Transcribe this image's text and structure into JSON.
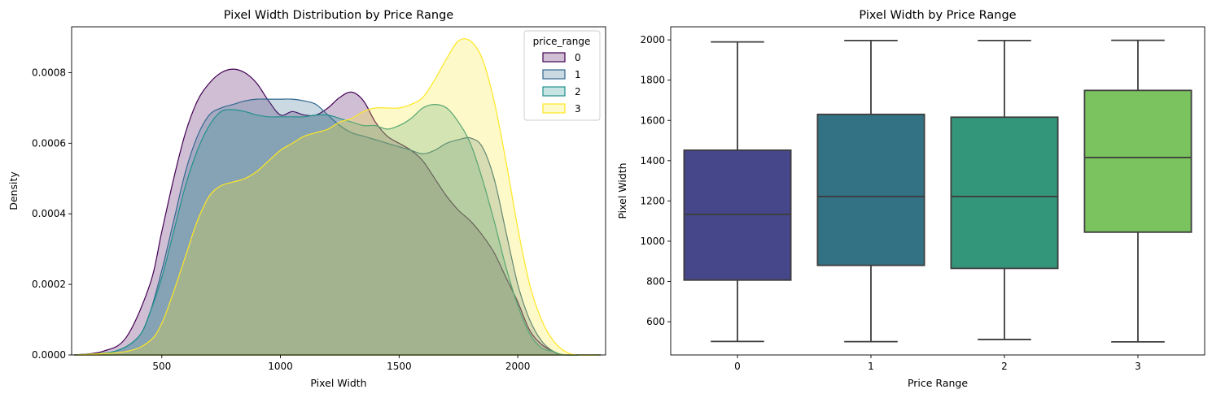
{
  "chart_data": [
    {
      "type": "area",
      "title": "Pixel Width Distribution by Price Range",
      "xlabel": "Pixel Width",
      "ylabel": "Density",
      "xlim": [
        120,
        2370
      ],
      "ylim": [
        0,
        0.00093
      ],
      "xticks": [
        500,
        1000,
        1500,
        2000
      ],
      "xtick_labels": [
        "500",
        "1000",
        "1500",
        "2000"
      ],
      "yticks": [
        0,
        0.0002,
        0.0004,
        0.0006,
        0.0008
      ],
      "ytick_labels": [
        "0.0000",
        "0.0002",
        "0.0004",
        "0.0006",
        "0.0008"
      ],
      "legend": {
        "title": "price_range",
        "position": "top-right"
      },
      "series": [
        {
          "name": "0",
          "color": "#440154",
          "x": [
            130,
            250,
            350,
            450,
            500,
            550,
            600,
            650,
            700,
            750,
            800,
            850,
            900,
            950,
            1000,
            1050,
            1100,
            1150,
            1200,
            1250,
            1300,
            1350,
            1400,
            1450,
            1500,
            1550,
            1600,
            1650,
            1700,
            1750,
            1800,
            1850,
            1900,
            1950,
            2000,
            2050,
            2100,
            2150,
            2200,
            2350
          ],
          "y": [
            0,
            1e-05,
            5e-05,
            0.0002,
            0.00035,
            0.0005,
            0.00063,
            0.00072,
            0.00077,
            0.0008,
            0.00081,
            0.0008,
            0.00077,
            0.00072,
            0.00068,
            0.00069,
            0.00068,
            0.00068,
            0.0007,
            0.00073,
            0.000745,
            0.00072,
            0.00066,
            0.00062,
            0.0006,
            0.00058,
            0.00055,
            0.0005,
            0.00045,
            0.00041,
            0.00038,
            0.00034,
            0.00029,
            0.00022,
            0.00015,
            7e-05,
            3e-05,
            1e-05,
            0,
            0
          ]
        },
        {
          "name": "1",
          "color": "#31688e",
          "x": [
            130,
            300,
            400,
            450,
            500,
            550,
            600,
            650,
            700,
            750,
            800,
            850,
            900,
            950,
            1000,
            1050,
            1100,
            1150,
            1200,
            1250,
            1300,
            1350,
            1400,
            1450,
            1500,
            1550,
            1600,
            1650,
            1700,
            1750,
            1800,
            1850,
            1900,
            1950,
            2000,
            2050,
            2100,
            2150,
            2200,
            2350
          ],
          "y": [
            0,
            1e-05,
            5e-05,
            0.00012,
            0.00024,
            0.00038,
            0.00052,
            0.00062,
            0.00068,
            0.0007,
            0.00071,
            0.00072,
            0.000725,
            0.000725,
            0.000725,
            0.000725,
            0.00072,
            0.00071,
            0.00068,
            0.00065,
            0.00063,
            0.00062,
            0.00061,
            0.0006,
            0.00059,
            0.00058,
            0.00057,
            0.00058,
            0.0006,
            0.00061,
            0.000615,
            0.00059,
            0.0005,
            0.00035,
            0.0002,
            0.0001,
            4e-05,
            1e-05,
            0,
            0
          ]
        },
        {
          "name": "2",
          "color": "#21918c",
          "x": [
            130,
            300,
            400,
            450,
            500,
            550,
            600,
            650,
            700,
            750,
            800,
            850,
            900,
            950,
            1000,
            1050,
            1100,
            1150,
            1200,
            1250,
            1300,
            1350,
            1400,
            1450,
            1500,
            1550,
            1600,
            1650,
            1700,
            1750,
            1800,
            1850,
            1900,
            1950,
            2000,
            2050,
            2100,
            2150,
            2200,
            2350
          ],
          "y": [
            0,
            1e-05,
            5e-05,
            0.00012,
            0.00022,
            0.00035,
            0.00048,
            0.00058,
            0.00065,
            0.00069,
            0.000695,
            0.00069,
            0.00068,
            0.000675,
            0.000675,
            0.000675,
            0.000675,
            0.00068,
            0.00068,
            0.00067,
            0.00066,
            0.00065,
            0.00065,
            0.00064,
            0.00065,
            0.00067,
            0.0007,
            0.00071,
            0.0007,
            0.00066,
            0.0006,
            0.0005,
            0.00038,
            0.00025,
            0.00014,
            6e-05,
            2e-05,
            1e-05,
            0,
            0
          ]
        },
        {
          "name": "3",
          "color": "#fde725",
          "x": [
            130,
            350,
            450,
            500,
            550,
            600,
            650,
            700,
            750,
            800,
            850,
            900,
            950,
            1000,
            1050,
            1100,
            1150,
            1200,
            1250,
            1300,
            1350,
            1400,
            1450,
            1500,
            1550,
            1600,
            1650,
            1700,
            1750,
            1800,
            1850,
            1900,
            1950,
            2000,
            2050,
            2100,
            2150,
            2200,
            2250,
            2350
          ],
          "y": [
            0,
            1e-05,
            4e-05,
            9e-05,
            0.00018,
            0.00028,
            0.00038,
            0.00045,
            0.00048,
            0.00049,
            0.0005,
            0.00052,
            0.00055,
            0.00058,
            0.0006,
            0.00062,
            0.00063,
            0.00064,
            0.00066,
            0.00067,
            0.00069,
            0.0007,
            0.0007,
            0.0007,
            0.00071,
            0.00073,
            0.00078,
            0.00084,
            0.00089,
            0.00089,
            0.00084,
            0.00072,
            0.00055,
            0.00036,
            0.0002,
            0.0001,
            4e-05,
            1e-05,
            0,
            0
          ]
        }
      ]
    },
    {
      "type": "box",
      "title": "Pixel Width by Price Range",
      "xlabel": "Price Range",
      "ylabel": "Pixel Width",
      "ylim": [
        435,
        2065
      ],
      "yticks": [
        600,
        800,
        1000,
        1200,
        1400,
        1600,
        1800,
        2000
      ],
      "ytick_labels": [
        "600",
        "800",
        "1000",
        "1200",
        "1400",
        "1600",
        "1800",
        "2000"
      ],
      "categories": [
        "0",
        "1",
        "2",
        "3"
      ],
      "boxes": [
        {
          "category": "0",
          "color": "#46468a",
          "whisker_low": 502,
          "q1": 807,
          "median": 1133,
          "q3": 1452,
          "whisker_high": 1990
        },
        {
          "category": "1",
          "color": "#337284",
          "whisker_low": 501,
          "q1": 880,
          "median": 1222,
          "q3": 1630,
          "whisker_high": 1997
        },
        {
          "category": "2",
          "color": "#33967b",
          "whisker_low": 512,
          "q1": 865,
          "median": 1222,
          "q3": 1616,
          "whisker_high": 1997
        },
        {
          "category": "3",
          "color": "#7bc35e",
          "whisker_low": 500,
          "q1": 1045,
          "median": 1416,
          "q3": 1749,
          "whisker_high": 1998
        }
      ]
    }
  ]
}
